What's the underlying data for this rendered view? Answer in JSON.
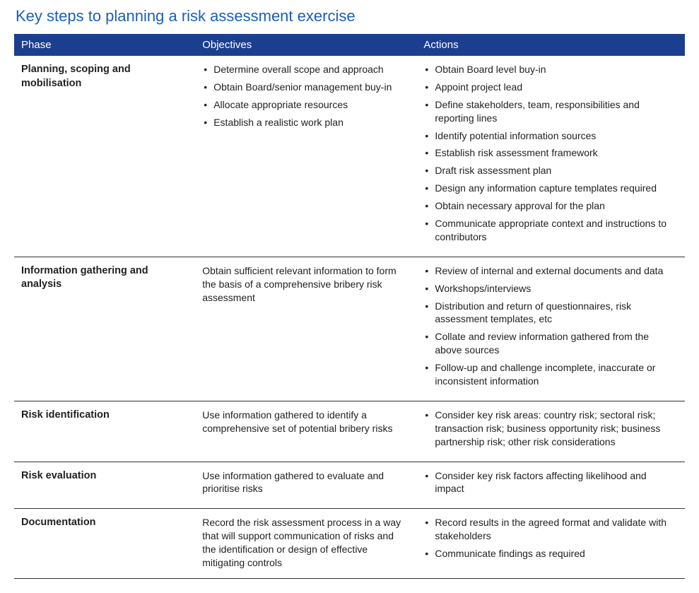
{
  "title": "Key steps to planning a risk assessment exercise",
  "colors": {
    "title": "#1b5fb8",
    "header_bg": "#1b3f8f",
    "header_text": "#ffffff",
    "body_text": "#222222",
    "row_border": "#333333",
    "background": "#ffffff"
  },
  "columns": [
    "Phase",
    "Objectives",
    "Actions"
  ],
  "column_widths_pct": [
    27,
    33,
    40
  ],
  "fontsize": {
    "title": 22,
    "header": 15,
    "body": 14,
    "phase": 14.5
  },
  "rows": [
    {
      "phase": "Planning, scoping and mobilisation",
      "objectives_type": "list",
      "objectives": [
        "Determine overall scope and approach",
        "Obtain Board/senior management buy-in",
        "Allocate appropriate resources",
        "Establish a realistic work plan"
      ],
      "actions": [
        "Obtain Board level buy-in",
        "Appoint project lead",
        "Define stakeholders, team, responsibilities and reporting lines",
        "Identify potential information sources",
        "Establish risk assessment framework",
        "Draft risk assessment plan",
        "Design any information capture templates required",
        "Obtain necessary approval for the plan",
        "Communicate appropriate context and instructions to contributors"
      ]
    },
    {
      "phase": "Information gathering and analysis",
      "objectives_type": "text",
      "objectives_text": "Obtain sufficient relevant information to form the basis of a comprehensive bribery risk assessment",
      "actions": [
        "Review of internal and external documents and data",
        "Workshops/interviews",
        "Distribution and return of questionnaires, risk assessment templates, etc",
        "Collate and review information gathered from the above sources",
        "Follow-up and challenge incomplete, inaccurate or inconsistent information"
      ]
    },
    {
      "phase": "Risk identification",
      "objectives_type": "text",
      "objectives_text": "Use information gathered to identify a comprehensive set of potential bribery risks",
      "actions": [
        "Consider key risk areas: country risk; sectoral risk; transaction risk; business opportunity risk; business partnership risk; other risk considerations"
      ]
    },
    {
      "phase": "Risk evaluation",
      "objectives_type": "text",
      "objectives_text": "Use information gathered to evaluate and prioritise risks",
      "actions": [
        "Consider key risk factors affecting likelihood and impact"
      ]
    },
    {
      "phase": "Documentation",
      "objectives_type": "text",
      "objectives_text": "Record the risk assessment process in a way that will support communication of risks and the identification or design of effective mitigating controls",
      "actions": [
        "Record results in the agreed format and validate with stakeholders",
        "Communicate findings as required"
      ]
    }
  ]
}
